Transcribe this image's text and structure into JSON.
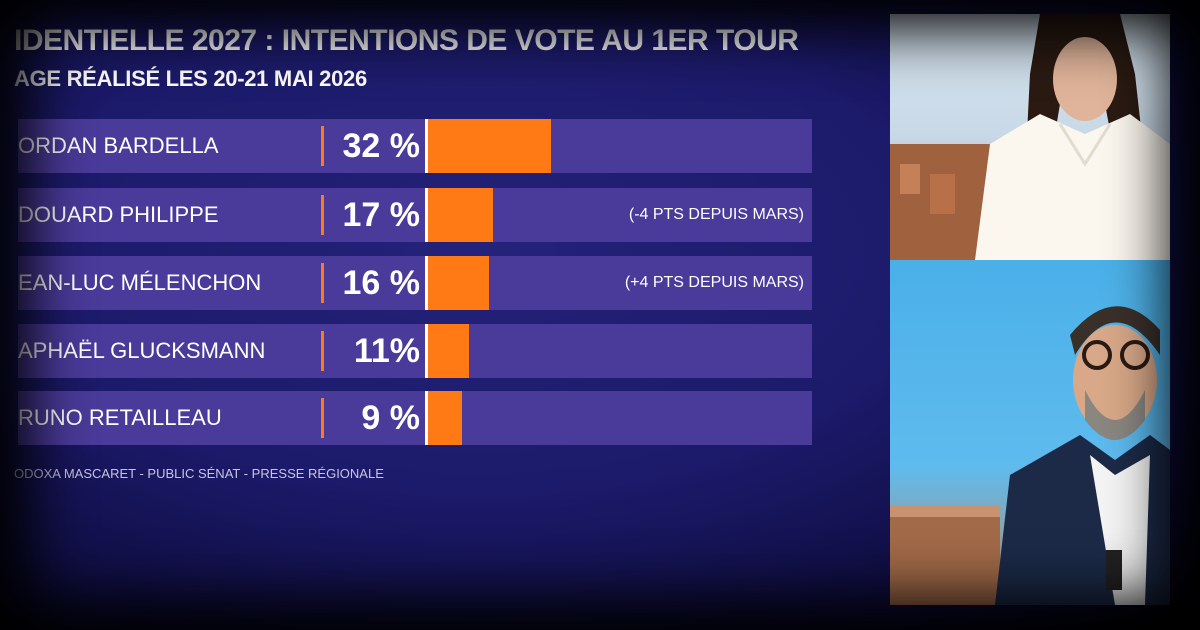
{
  "title": "IDENTIELLE 2027 : INTENTIONS DE VOTE AU 1ER TOUR",
  "subtitle": "AGE RÉALISÉ LES 20-21 MAI 2026",
  "source": "ODOXA MASCARET - PUBLIC SÉNAT - PRESSE RÉGIONALE",
  "colors": {
    "bar": "#ff7a14",
    "track": "#4a3a9a",
    "background": "#1c1a6a"
  },
  "chart_data": {
    "type": "bar",
    "orientation": "horizontal",
    "categories": [
      "ORDAN BARDELLA",
      "DOUARD PHILIPPE",
      "EAN-LUC MÉLENCHON",
      "APHAËL GLUCKSMANN",
      "RUNO RETAILLEAU"
    ],
    "values": [
      32,
      17,
      16,
      11,
      9
    ],
    "value_labels": [
      "32 %",
      "17 %",
      "16 %",
      "11%",
      "9 %"
    ],
    "annotations": [
      "",
      "(-4 PTS DEPUIS MARS)",
      "(+4 PTS DEPUIS MARS)",
      "",
      ""
    ],
    "unit": "%",
    "xlim": [
      0,
      100
    ],
    "title": "IDENTIELLE 2027 : INTENTIONS DE VOTE AU 1ER TOUR",
    "subtitle": "AGE RÉALISÉ LES 20-21 MAI 2026"
  },
  "video_feeds": [
    {
      "name": "presenter-feed"
    },
    {
      "name": "guest-feed"
    }
  ]
}
